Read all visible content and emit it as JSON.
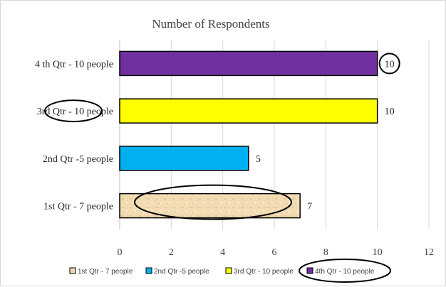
{
  "chart_data": {
    "type": "bar",
    "orientation": "horizontal",
    "title": "Number of Respondents",
    "xlabel": "",
    "ylabel": "",
    "xlim": [
      0,
      12
    ],
    "x_ticks": [
      "0",
      "2",
      "4",
      "6",
      "8",
      "10",
      "12"
    ],
    "grid": "vertical",
    "legend_position": "bottom",
    "categories": [
      "1st Qtr - 7 people",
      "2nd Qtr -5 people",
      "3rd Qtr - 10 people",
      "4 th Qtr - 10 people"
    ],
    "values": [
      7,
      5,
      10,
      10
    ],
    "data_labels": [
      "7",
      "5",
      "10",
      "10"
    ],
    "colors": [
      "#f2dcb3",
      "#00b0f0",
      "#ffff00",
      "#7030a0"
    ],
    "first_bar_fill": "textured parchment",
    "legend": [
      "1st Qtr - 7 people",
      "2nd Qtr -5 people",
      "3rd Qtr - 10 people",
      "4th Qtr - 10 people"
    ],
    "annotations": [
      {
        "shape": "ellipse",
        "target": "4th Qtr data label"
      },
      {
        "shape": "ellipse",
        "target": "3rd Qtr category label"
      },
      {
        "shape": "ellipse",
        "target": "1st Qtr bar"
      },
      {
        "shape": "ellipse",
        "target": "4th Qtr legend entry"
      }
    ]
  }
}
